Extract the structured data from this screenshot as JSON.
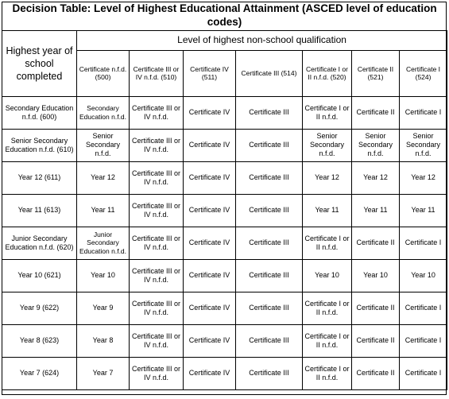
{
  "title": "Decision Table: Level of Highest Educational Attainment (ASCED level of education codes)",
  "row_header": "Highest year of school completed",
  "column_group_header": "Level of highest non-school qualification",
  "columns": [
    "Certificate n.f.d. (500)",
    "Certificate III or IV n.f.d. (510)",
    "Certificate IV (511)",
    "Certificate III (514)",
    "Certificate I or II n.f.d. (520)",
    "Certificate II (521)",
    "Certificate I (524)"
  ],
  "rows": [
    {
      "label": "Secondary Education n.f.d. (600)",
      "cells": [
        "Secondary Education n.f.d.",
        "Certificate III or IV n.f.d.",
        "Certificate IV",
        "Certificate III",
        "Certificate I or II n.f.d.",
        "Certificate II",
        "Certificate I"
      ]
    },
    {
      "label": "Senior Secondary Education n.f.d. (610)",
      "cells": [
        "Senior Secondary n.f.d.",
        "Certificate III or IV n.f.d.",
        "Certificate IV",
        "Certificate III",
        "Senior Secondary n.f.d.",
        "Senior Secondary n.f.d.",
        "Senior Secondary n.f.d."
      ]
    },
    {
      "label": "Year 12 (611)",
      "cells": [
        "Year 12",
        "Certificate III or IV n.f.d.",
        "Certificate IV",
        "Certificate III",
        "Year 12",
        "Year 12",
        "Year 12"
      ]
    },
    {
      "label": "Year 11 (613)",
      "cells": [
        "Year 11",
        "Certificate III or IV n.f.d.",
        "Certificate IV",
        "Certificate III",
        "Year 11",
        "Year 11",
        "Year 11"
      ]
    },
    {
      "label": "Junior Secondary Education n.f.d. (620)",
      "cells": [
        "Junior Secondary Education n.f.d.",
        "Certificate III or IV n.f.d.",
        "Certificate IV",
        "Certificate III",
        "Certificate I or II n.f.d.",
        "Certificate II",
        "Certificate I"
      ]
    },
    {
      "label": "Year 10 (621)",
      "cells": [
        "Year 10",
        "Certificate III or IV n.f.d.",
        "Certificate IV",
        "Certificate III",
        "Year 10",
        "Year 10",
        "Year 10"
      ]
    },
    {
      "label": "Year 9 (622)",
      "cells": [
        "Year 9",
        "Certificate III or IV n.f.d.",
        "Certificate IV",
        "Certificate III",
        "Certificate I or II n.f.d.",
        "Certificate II",
        "Certificate I"
      ]
    },
    {
      "label": "Year 8 (623)",
      "cells": [
        "Year 8",
        "Certificate III or IV n.f.d.",
        "Certificate IV",
        "Certificate III",
        "Certificate I or II n.f.d.",
        "Certificate II",
        "Certificate I"
      ]
    },
    {
      "label": "Year 7 (624)",
      "cells": [
        "Year 7",
        "Certificate III or IV n.f.d.",
        "Certificate IV",
        "Certificate III",
        "Certificate I or II n.f.d.",
        "Certificate II",
        "Certificate I"
      ]
    }
  ]
}
